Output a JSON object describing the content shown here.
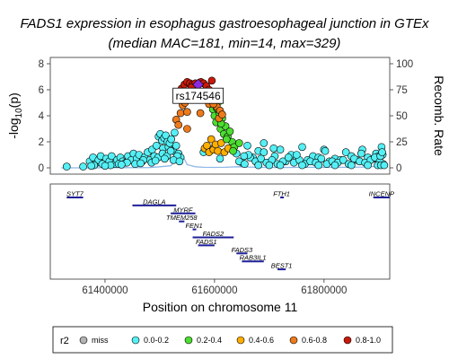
{
  "chart_data": [
    {
      "type": "scatter",
      "title": "FADS1 expression in esophagus gastroesophageal junction in GTEx",
      "subtitle": "(median MAC=181, min=14, max=329)",
      "ylabel_left": "-log10(p)",
      "ylabel_left_main": "-log",
      "ylabel_left_sub": "10",
      "ylabel_left_tail": "(p)",
      "ylabel_right": "Recomb. Rate",
      "ylim_left": [
        0,
        8.3
      ],
      "ylim_right": [
        0,
        102
      ],
      "yticks_left": [
        "0",
        "2",
        "4",
        "6",
        "8"
      ],
      "yticks_right": [
        "0",
        "25",
        "50",
        "75",
        "100"
      ],
      "xlim": [
        61300000,
        61920000
      ],
      "lead_snp": {
        "label": "rs174546",
        "x": 61570000,
        "y": 6.4
      },
      "r2_colors": {
        "miss": "#b3b3b3",
        "0.0-0.2": "#55f0f5",
        "0.2-0.4": "#4cde30",
        "0.4-0.6": "#ffae00",
        "0.6-0.8": "#ee7a1b",
        "0.8-1.0": "#c81a0a",
        "lead": "#8a2be2"
      },
      "recomb_rate_line": {
        "color": "#8fb8e8",
        "x": [
          61320000,
          61380000,
          61420000,
          61480000,
          61500000,
          61520000,
          61540000,
          61550000,
          61565000,
          61580000,
          61600000,
          61620000,
          61640000,
          61680000,
          61720000,
          61760000,
          61800000,
          61840000,
          61880000,
          61905000
        ],
        "y": [
          0,
          0,
          0.2,
          0.3,
          1,
          2,
          14,
          3,
          1,
          0.5,
          0.4,
          0.5,
          1,
          0.5,
          0.3,
          0.5,
          0.4,
          0.5,
          0.8,
          2
        ]
      },
      "points_by_r2": {
        "0.0-0.2": {
          "x": [
            61330000,
            61360000,
            61372000,
            61378000,
            61382000,
            61388000,
            61392000,
            61398000,
            61402000,
            61408000,
            61412000,
            61418000,
            61422000,
            61428000,
            61432000,
            61438000,
            61442000,
            61448000,
            61452000,
            61458000,
            61462000,
            61468000,
            61472000,
            61478000,
            61482000,
            61486000,
            61490000,
            61494000,
            61498000,
            61501000,
            61504000,
            61506000,
            61508000,
            61511000,
            61514000,
            61516000,
            61518000,
            61521000,
            61524000,
            61527000,
            61530000,
            61534000,
            61538000,
            61380000,
            61395000,
            61410000,
            61425000,
            61440000,
            61455000,
            61470000,
            61485000,
            61497000,
            61505000,
            61513000,
            61520000,
            61532000,
            61375000,
            61400000,
            61430000,
            61465000,
            61492000,
            61509000,
            61525000,
            61536000,
            61580000,
            61600000,
            61610000,
            61640000,
            61650000,
            61660000,
            61670000,
            61680000,
            61690000,
            61700000,
            61710000,
            61720000,
            61730000,
            61740000,
            61750000,
            61760000,
            61770000,
            61780000,
            61790000,
            61800000,
            61810000,
            61820000,
            61830000,
            61840000,
            61850000,
            61860000,
            61870000,
            61880000,
            61890000,
            61895000,
            61900000,
            61905000,
            61908000,
            61645000,
            61655000,
            61665000,
            61675000,
            61685000,
            61695000,
            61705000,
            61715000,
            61725000,
            61735000,
            61745000,
            61755000,
            61765000,
            61775000,
            61785000,
            61795000,
            61805000,
            61815000,
            61825000,
            61835000,
            61845000,
            61855000,
            61865000,
            61875000,
            61885000,
            61893000,
            61902000,
            61907000,
            61680000,
            61700000,
            61720000,
            61760000,
            61790000,
            61820000,
            61850000,
            61880000,
            61898000,
            61904000,
            61910000,
            61662000,
            61708000,
            61750000,
            61802000,
            61868000,
            61903000,
            61906000,
            61654000,
            61690000
          ],
          "y": [
            0.1,
            0.1,
            0.5,
            0.8,
            0.3,
            0.6,
            0.9,
            0.4,
            0.7,
            0.5,
            0.9,
            0.3,
            0.6,
            0.8,
            0.5,
            0.4,
            0.9,
            0.6,
            1.1,
            0.7,
            1.0,
            0.5,
            0.8,
            1.2,
            0.6,
            1.4,
            0.9,
            1.7,
            2.4,
            2.6,
            2.1,
            1.5,
            2.3,
            2.5,
            2.0,
            1.6,
            1.9,
            2.2,
            1.3,
            2.7,
            1.7,
            1.1,
            0.8,
            0.2,
            0.3,
            0.2,
            0.3,
            0.4,
            0.3,
            0.6,
            0.4,
            0.8,
            1.1,
            0.9,
            1.3,
            0.9,
            0.15,
            0.15,
            0.25,
            0.35,
            0.55,
            0.7,
            0.6,
            0.5,
            1.2,
            1.6,
            0.7,
            1.1,
            0.4,
            1.7,
            0.8,
            1.3,
            1.2,
            0.4,
            0.9,
            1.4,
            0.5,
            1.0,
            0.7,
            1.6,
            0.6,
            0.9,
            0.8,
            1.4,
            0.5,
            0.7,
            0.6,
            1.2,
            0.9,
            0.6,
            1.4,
            0.8,
            0.7,
            1.1,
            0.9,
            1.6,
            0.3,
            0.5,
            0.3,
            0.8,
            0.5,
            0.7,
            0.4,
            0.6,
            0.3,
            0.5,
            0.8,
            0.4,
            0.6,
            0.3,
            0.5,
            0.4,
            0.7,
            0.3,
            0.5,
            0.4,
            0.6,
            0.3,
            0.7,
            0.5,
            0.4,
            0.6,
            0.8,
            0.5,
            1.0,
            0.2,
            0.2,
            0.2,
            0.2,
            0.2,
            0.2,
            0.2,
            0.2,
            0.2,
            0.2,
            0.2,
            1.0,
            1.5,
            1.0,
            1.3,
            1.1,
            0.9,
            1.2,
            0.9,
            1.9
          ]
        },
        "0.2-0.4": {
          "x": [
            61597000,
            61600000,
            61603000,
            61606000,
            61609000,
            61611000,
            61614000,
            61617000,
            61620000,
            61624000,
            61628000,
            61632000,
            61636000,
            61604000,
            61612000,
            61622000,
            61634000,
            61645000
          ],
          "y": [
            4.5,
            4.0,
            3.5,
            5.0,
            4.2,
            3.0,
            3.8,
            2.6,
            3.2,
            2.4,
            2.8,
            2.0,
            1.6,
            4.6,
            3.4,
            2.2,
            1.3,
            1.9
          ]
        },
        "0.4-0.6": {
          "x": [
            61582000,
            61586000,
            61590000,
            61594000,
            61598000,
            61602000,
            61606000,
            61612000,
            61618000,
            61625000
          ],
          "y": [
            1.5,
            1.7,
            1.2,
            2.2,
            1.4,
            1.8,
            1.3,
            1.9,
            1.2,
            1.5
          ]
        },
        "0.6-0.8": {
          "x": [
            61530000,
            61534000,
            61538000,
            61542000,
            61546000,
            61550000,
            61574000,
            61585000,
            61590000,
            61596000,
            61600000,
            61604000,
            61610000,
            61608000,
            61598000,
            61614000,
            61532000,
            61550000
          ],
          "y": [
            3.7,
            3.3,
            4.2,
            4.8,
            5.0,
            3.0,
            4.2,
            5.3,
            4.9,
            5.2,
            5.4,
            4.7,
            4.4,
            3.8,
            4.9,
            4.1,
            5.3,
            4.3
          ]
        },
        "0.8-1.0": {
          "x": [
            61540000,
            61545000,
            61550000,
            61555000,
            61560000,
            61565000,
            61575000,
            61580000,
            61585000,
            61590000,
            61595000,
            61548000,
            61558000,
            61587000
          ],
          "y": [
            6.1,
            6.4,
            6.6,
            6.5,
            6.4,
            6.5,
            6.6,
            6.5,
            6.3,
            6.0,
            6.7,
            5.8,
            6.2,
            5.6
          ]
        }
      }
    },
    {
      "type": "table",
      "xlabel": "Position on chromosome 11",
      "xticks": [
        "61400000",
        "61600000",
        "61800000"
      ],
      "xtick_values": [
        61400000,
        61600000,
        61800000
      ],
      "gene_color": "#1f1f9a",
      "genes": [
        {
          "name": "SYT7",
          "start": 61330000,
          "end": 61360000,
          "row": 0
        },
        {
          "name": "FTH1",
          "start": 61720000,
          "end": 61725000,
          "row": 0
        },
        {
          "name": "INCENP",
          "start": 61890000,
          "end": 61920000,
          "row": 0
        },
        {
          "name": "DAGLA",
          "start": 61450000,
          "end": 61530000,
          "row": 1
        },
        {
          "name": "MYRF",
          "start": 61520000,
          "end": 61565000,
          "row": 2
        },
        {
          "name": "TMEM258",
          "start": 61535000,
          "end": 61545000,
          "row": 3
        },
        {
          "name": "FEN1",
          "start": 61560000,
          "end": 61565000,
          "row": 4
        },
        {
          "name": "FADS2",
          "start": 61560000,
          "end": 61635000,
          "row": 5
        },
        {
          "name": "FADS1",
          "start": 61570000,
          "end": 61600000,
          "row": 6
        },
        {
          "name": "FADS3",
          "start": 61640000,
          "end": 61660000,
          "row": 7
        },
        {
          "name": "RAB3IL1",
          "start": 61650000,
          "end": 61690000,
          "row": 8
        },
        {
          "name": "BEST1",
          "start": 61715000,
          "end": 61730000,
          "row": 9
        }
      ]
    }
  ],
  "legend": {
    "title": "r2",
    "entries": [
      {
        "label": "miss",
        "color": "#b3b3b3"
      },
      {
        "label": "0.0-0.2",
        "color": "#55f0f5"
      },
      {
        "label": "0.2-0.4",
        "color": "#4cde30"
      },
      {
        "label": "0.4-0.6",
        "color": "#ffae00"
      },
      {
        "label": "0.6-0.8",
        "color": "#ee7a1b"
      },
      {
        "label": "0.8-1.0",
        "color": "#c81a0a"
      }
    ]
  }
}
